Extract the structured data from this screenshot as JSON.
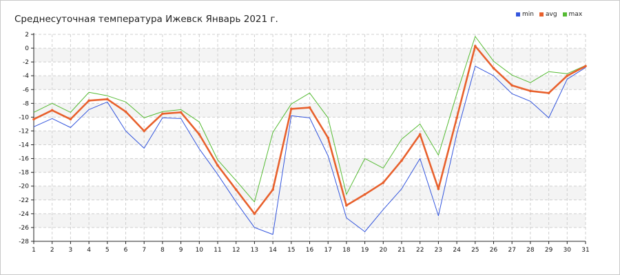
{
  "chart_data": {
    "type": "line",
    "title": "Среднесуточная температура Ижевск  Январь 2021 г.",
    "xlabel": "",
    "ylabel": "",
    "x": [
      1,
      2,
      3,
      4,
      5,
      6,
      7,
      8,
      9,
      10,
      11,
      12,
      13,
      14,
      15,
      16,
      17,
      18,
      19,
      20,
      21,
      22,
      23,
      24,
      25,
      26,
      27,
      28,
      29,
      30,
      31
    ],
    "x_ticks": [
      "1",
      "2",
      "3",
      "4",
      "5",
      "6",
      "7",
      "8",
      "9",
      "10",
      "11",
      "12",
      "13",
      "14",
      "15",
      "16",
      "17",
      "18",
      "19",
      "20",
      "21",
      "22",
      "23",
      "24",
      "25",
      "26",
      "27",
      "28",
      "29",
      "30",
      "31"
    ],
    "y_ticks": [
      "2",
      "0",
      "-2",
      "-4",
      "-6",
      "-8",
      "-10",
      "-12",
      "-14",
      "-16",
      "-18",
      "-20",
      "-22",
      "-24",
      "-26",
      "-28"
    ],
    "ylim": [
      -28,
      2
    ],
    "grid": true,
    "legend_position": "top-right",
    "series": [
      {
        "name": "min",
        "color": "#3355dd",
        "values": [
          -11.4,
          -10.2,
          -11.5,
          -8.9,
          -7.8,
          -12.0,
          -14.5,
          -10.1,
          -10.2,
          -14.6,
          -18.3,
          -22.3,
          -26.0,
          -27.0,
          -9.8,
          -10.1,
          -15.6,
          -24.6,
          -26.6,
          -23.4,
          -20.4,
          -16.0,
          -24.3,
          -12.4,
          -2.6,
          -4.0,
          -6.6,
          -7.7,
          -10.1,
          -4.5,
          -2.8
        ]
      },
      {
        "name": "avg",
        "color": "#e8602c",
        "values": [
          -10.3,
          -9.0,
          -10.3,
          -7.6,
          -7.4,
          -9.2,
          -12.0,
          -9.5,
          -9.3,
          -12.5,
          -17.0,
          -20.5,
          -24.0,
          -20.5,
          -8.8,
          -8.6,
          -13.0,
          -22.8,
          -21.2,
          -19.5,
          -16.3,
          -12.5,
          -20.4,
          -10.1,
          0.3,
          -2.9,
          -5.4,
          -6.2,
          -6.5,
          -4.0,
          -2.6
        ]
      },
      {
        "name": "max",
        "color": "#55bb33",
        "values": [
          -9.3,
          -8.0,
          -9.3,
          -6.4,
          -6.9,
          -7.8,
          -10.1,
          -9.2,
          -8.9,
          -10.7,
          -16.2,
          -19.2,
          -22.3,
          -12.2,
          -8.1,
          -6.5,
          -10.1,
          -21.2,
          -16.0,
          -17.4,
          -13.2,
          -11.0,
          -15.5,
          -6.6,
          1.7,
          -1.9,
          -3.9,
          -5.0,
          -3.4,
          -3.7,
          -2.5
        ]
      }
    ]
  }
}
